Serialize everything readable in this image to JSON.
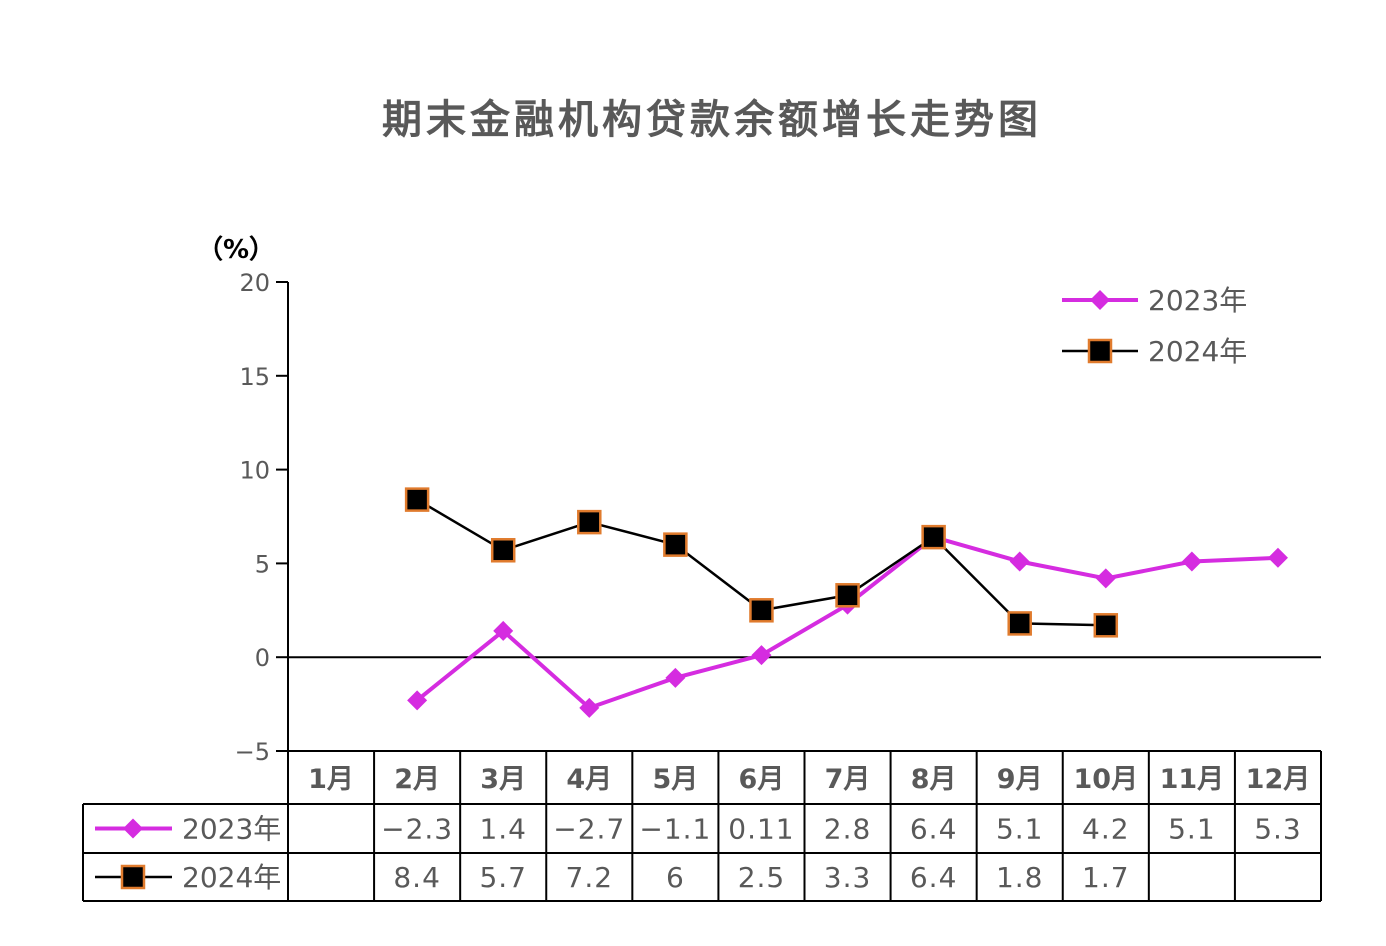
{
  "chart_data": {
    "type": "line",
    "title": "期末金融机构贷款余额增长走势图",
    "unit": "（%）",
    "categories": [
      "1月",
      "2月",
      "3月",
      "4月",
      "5月",
      "6月",
      "7月",
      "8月",
      "9月",
      "10月",
      "11月",
      "12月"
    ],
    "ylim": [
      -5,
      20
    ],
    "yticks": [
      20,
      15,
      10,
      5,
      0,
      -5
    ],
    "ytick_labels": [
      "20",
      "15",
      "10",
      "5",
      "0",
      "−5"
    ],
    "grid": false,
    "legend_position": "top-right",
    "series": [
      {
        "name": "2023年",
        "color": "#d52ce0",
        "marker": "diamond",
        "values": [
          null,
          -2.3,
          1.4,
          -2.7,
          -1.1,
          0.11,
          2.8,
          6.4,
          5.1,
          4.2,
          5.1,
          5.3
        ],
        "labels": [
          "",
          "−2.3",
          "1.4",
          "−2.7",
          "−1.1",
          "0.11",
          "2.8",
          "6.4",
          "5.1",
          "4.2",
          "5.1",
          "5.3"
        ]
      },
      {
        "name": "2024年",
        "color": "#000000",
        "marker_edge": "#e07b2d",
        "marker": "square",
        "values": [
          null,
          8.4,
          5.7,
          7.2,
          6,
          2.5,
          3.3,
          6.4,
          1.8,
          1.7,
          null,
          null
        ],
        "labels": [
          "",
          "8.4",
          "5.7",
          "7.2",
          "6",
          "2.5",
          "3.3",
          "6.4",
          "1.8",
          "1.7",
          "",
          ""
        ]
      }
    ]
  }
}
